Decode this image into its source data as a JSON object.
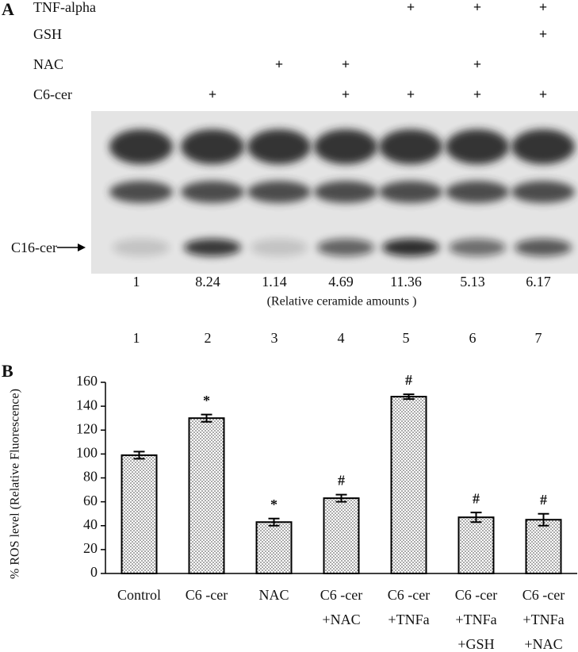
{
  "panel_a": {
    "letter": "A",
    "treatments": [
      {
        "label": "TNF-alpha",
        "marks": [
          null,
          null,
          null,
          null,
          "+",
          "+",
          "+"
        ]
      },
      {
        "label": "GSH",
        "marks": [
          null,
          null,
          null,
          null,
          null,
          null,
          "+"
        ]
      },
      {
        "label": "NAC",
        "marks": [
          null,
          null,
          "+",
          "+",
          null,
          "+",
          null
        ]
      },
      {
        "label": "C6-cer",
        "marks": [
          null,
          "+",
          null,
          "+",
          "+",
          "+",
          "+"
        ]
      }
    ],
    "band_label": "C16-cer",
    "relative_amounts": [
      1,
      8.24,
      1.14,
      4.69,
      11.36,
      5.13,
      6.17
    ],
    "relative_caption": "(Relative ceramide amounts )",
    "lanes": [
      1,
      2,
      3,
      4,
      5,
      6,
      7
    ]
  },
  "chart_data": {
    "type": "bar",
    "panel_letter": "B",
    "ylabel": "% ROS level  (Relative Fluorescence)",
    "categories": [
      [
        "Control"
      ],
      [
        "C6 -cer"
      ],
      [
        "NAC"
      ],
      [
        "C6 -cer",
        "+NAC"
      ],
      [
        "C6 -cer",
        "+TNFa"
      ],
      [
        "C6 -cer",
        "+TNFa",
        "+GSH"
      ],
      [
        "C6 -cer",
        "+TNFa",
        "+NAC"
      ]
    ],
    "values": [
      99,
      130,
      43,
      63,
      148,
      47,
      45
    ],
    "errors": [
      3,
      3,
      3,
      3,
      2,
      4,
      5
    ],
    "annotations": [
      null,
      "*",
      "*",
      "#",
      "#",
      "#",
      "#"
    ],
    "ylim": [
      0,
      160
    ],
    "yticks": [
      0,
      20,
      40,
      60,
      80,
      100,
      120,
      140,
      160
    ]
  }
}
